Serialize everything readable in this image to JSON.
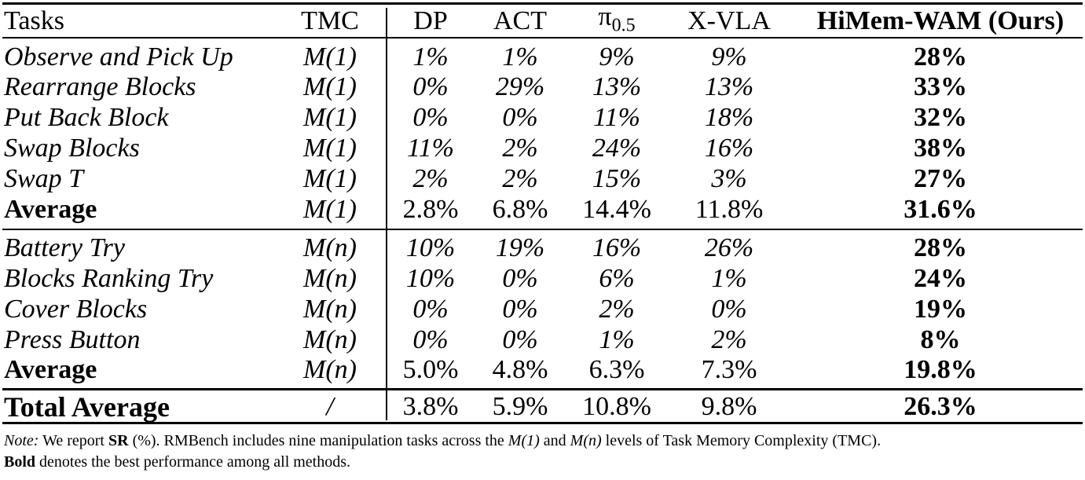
{
  "table": {
    "header": [
      "Tasks",
      "TMC",
      "DP",
      "ACT",
      {
        "symbol": "π",
        "subscript": "0.5"
      },
      "X-VLA",
      "HiMem-WAM (Ours)"
    ],
    "sections": [
      {
        "rows": [
          {
            "cells": [
              "Observe and Pick Up",
              "M(1)",
              "1%",
              "1%",
              "9%",
              "9%",
              "28%"
            ]
          },
          {
            "cells": [
              "Rearrange Blocks",
              "M(1)",
              "0%",
              "29%",
              "13%",
              "13%",
              "33%"
            ]
          },
          {
            "cells": [
              "Put Back Block",
              "M(1)",
              "0%",
              "0%",
              "11%",
              "18%",
              "32%"
            ]
          },
          {
            "cells": [
              "Swap Blocks",
              "M(1)",
              "11%",
              "2%",
              "24%",
              "16%",
              "38%"
            ]
          },
          {
            "cells": [
              "Swap T",
              "M(1)",
              "2%",
              "2%",
              "15%",
              "3%",
              "27%"
            ]
          },
          {
            "cells": [
              "Average",
              "M(1)",
              "2.8%",
              "6.8%",
              "14.4%",
              "11.8%",
              "31.6%"
            ],
            "bold": true
          }
        ]
      },
      {
        "rows": [
          {
            "cells": [
              "Battery Try",
              "M(n)",
              "10%",
              "19%",
              "16%",
              "26%",
              "28%"
            ]
          },
          {
            "cells": [
              "Blocks Ranking Try",
              "M(n)",
              "10%",
              "0%",
              "6%",
              "1%",
              "24%"
            ]
          },
          {
            "cells": [
              "Cover Blocks",
              "M(n)",
              "0%",
              "0%",
              "2%",
              "0%",
              "19%"
            ]
          },
          {
            "cells": [
              "Press Button",
              "M(n)",
              "0%",
              "0%",
              "1%",
              "2%",
              "8%"
            ]
          },
          {
            "cells": [
              "Average",
              "M(n)",
              "5.0%",
              "4.8%",
              "6.3%",
              "7.3%",
              "19.8%"
            ],
            "bold": true
          }
        ]
      },
      {
        "rows": [
          {
            "cells": [
              "Total Average",
              "/",
              "3.8%",
              "5.9%",
              "10.8%",
              "9.8%",
              "26.3%"
            ],
            "bold": true
          }
        ]
      }
    ]
  },
  "note": [
    "Note:",
    " We report ",
    "SR",
    " (%). RMBench includes nine manipulation tasks across the ",
    "M(1)",
    " and ",
    "M(n)",
    " levels of Task Memory Complexity (TMC).",
    "Bold",
    " denotes the best performance among all methods."
  ]
}
